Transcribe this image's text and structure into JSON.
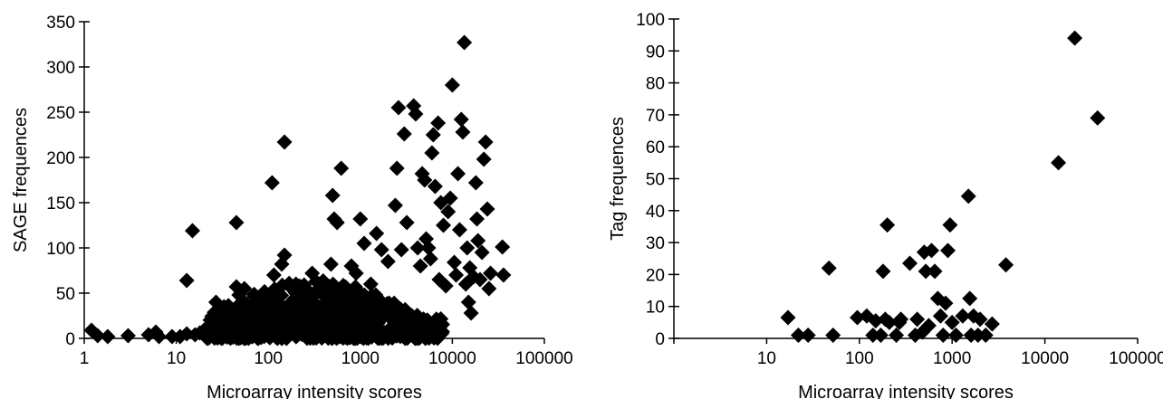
{
  "chart_data": [
    {
      "type": "scatter",
      "xlabel": "Microarray intensity scores",
      "ylabel": "SAGE frequences",
      "x_scale": "log",
      "xlim": [
        1,
        100000
      ],
      "ylim": [
        0,
        350
      ],
      "x_ticks": [
        "1",
        "10",
        "100",
        "1000",
        "10000",
        "100000"
      ],
      "y_ticks": [
        "0",
        "50",
        "100",
        "150",
        "200",
        "250",
        "300",
        "350"
      ],
      "marker": "diamond",
      "color": "#000000",
      "grid": false,
      "points": [
        [
          1.2,
          9
        ],
        [
          1.4,
          3
        ],
        [
          1.8,
          2
        ],
        [
          3,
          3
        ],
        [
          5,
          4
        ],
        [
          6,
          7
        ],
        [
          6.5,
          2
        ],
        [
          9,
          2
        ],
        [
          11,
          2
        ],
        [
          13,
          64
        ],
        [
          15,
          119
        ],
        [
          13,
          5
        ],
        [
          16,
          4
        ],
        [
          18,
          6
        ],
        [
          20,
          9
        ],
        [
          22,
          12
        ],
        [
          25,
          18
        ],
        [
          27,
          40
        ],
        [
          30,
          25
        ],
        [
          33,
          35
        ],
        [
          45,
          128
        ],
        [
          45,
          57
        ],
        [
          48,
          48
        ],
        [
          55,
          55
        ],
        [
          40,
          15
        ],
        [
          60,
          22
        ],
        [
          70,
          18
        ],
        [
          80,
          30
        ],
        [
          90,
          10
        ],
        [
          110,
          172
        ],
        [
          115,
          70
        ],
        [
          150,
          217
        ],
        [
          150,
          92
        ],
        [
          140,
          82
        ],
        [
          125,
          45
        ],
        [
          170,
          38
        ],
        [
          200,
          60
        ],
        [
          250,
          55
        ],
        [
          300,
          72
        ],
        [
          330,
          63
        ],
        [
          380,
          50
        ],
        [
          420,
          45
        ],
        [
          480,
          82
        ],
        [
          500,
          158
        ],
        [
          520,
          132
        ],
        [
          560,
          128
        ],
        [
          620,
          188
        ],
        [
          650,
          52
        ],
        [
          700,
          40
        ],
        [
          800,
          80
        ],
        [
          900,
          72
        ],
        [
          1000,
          132
        ],
        [
          1100,
          105
        ],
        [
          1300,
          60
        ],
        [
          1500,
          116
        ],
        [
          1700,
          98
        ],
        [
          2000,
          85
        ],
        [
          2400,
          147
        ],
        [
          2500,
          188
        ],
        [
          2600,
          255
        ],
        [
          2800,
          98
        ],
        [
          3000,
          226
        ],
        [
          3200,
          128
        ],
        [
          3800,
          257
        ],
        [
          4000,
          248
        ],
        [
          4200,
          100
        ],
        [
          4500,
          80
        ],
        [
          4700,
          182
        ],
        [
          5000,
          175
        ],
        [
          5200,
          110
        ],
        [
          5500,
          100
        ],
        [
          5800,
          88
        ],
        [
          6000,
          205
        ],
        [
          6200,
          225
        ],
        [
          6500,
          168
        ],
        [
          7000,
          238
        ],
        [
          7200,
          65
        ],
        [
          7500,
          150
        ],
        [
          8000,
          125
        ],
        [
          8500,
          58
        ],
        [
          9000,
          140
        ],
        [
          9500,
          155
        ],
        [
          10000,
          280
        ],
        [
          10500,
          84
        ],
        [
          11000,
          70
        ],
        [
          11500,
          182
        ],
        [
          12000,
          120
        ],
        [
          12500,
          242
        ],
        [
          13000,
          228
        ],
        [
          13500,
          327
        ],
        [
          14000,
          60
        ],
        [
          14500,
          100
        ],
        [
          15000,
          40
        ],
        [
          15500,
          78
        ],
        [
          16000,
          28
        ],
        [
          17000,
          68
        ],
        [
          18000,
          172
        ],
        [
          18500,
          132
        ],
        [
          19000,
          108
        ],
        [
          20000,
          65
        ],
        [
          21000,
          95
        ],
        [
          22000,
          198
        ],
        [
          23000,
          217
        ],
        [
          24000,
          143
        ],
        [
          25000,
          55
        ],
        [
          26000,
          72
        ],
        [
          35000,
          101
        ],
        [
          36000,
          70
        ]
      ],
      "dense_cluster": {
        "x_range": [
          20,
          8000
        ],
        "y_range": [
          0,
          65
        ]
      }
    },
    {
      "type": "scatter",
      "xlabel": "Microarray intensity scores",
      "ylabel": "Tag frequences",
      "x_scale": "log",
      "xlim": [
        1,
        100000
      ],
      "ylim": [
        0,
        100
      ],
      "x_ticks": [
        "10",
        "100",
        "1000",
        "10000",
        "100000"
      ],
      "y_ticks": [
        "0",
        "10",
        "20",
        "30",
        "40",
        "50",
        "60",
        "70",
        "80",
        "90",
        "100"
      ],
      "marker": "diamond",
      "color": "#000000",
      "grid": false,
      "points": [
        [
          17,
          6.5
        ],
        [
          22,
          1
        ],
        [
          28,
          1
        ],
        [
          47,
          22
        ],
        [
          52,
          1
        ],
        [
          95,
          6.5
        ],
        [
          120,
          7
        ],
        [
          140,
          1
        ],
        [
          150,
          5.5
        ],
        [
          170,
          1
        ],
        [
          180,
          21
        ],
        [
          190,
          6
        ],
        [
          200,
          35.5
        ],
        [
          210,
          5
        ],
        [
          250,
          1
        ],
        [
          270,
          5
        ],
        [
          280,
          6
        ],
        [
          350,
          23.5
        ],
        [
          400,
          1
        ],
        [
          420,
          6
        ],
        [
          480,
          2
        ],
        [
          500,
          27
        ],
        [
          520,
          21
        ],
        [
          560,
          4
        ],
        [
          600,
          27.5
        ],
        [
          650,
          21
        ],
        [
          700,
          12.5
        ],
        [
          750,
          7
        ],
        [
          800,
          1
        ],
        [
          850,
          11
        ],
        [
          900,
          27.5
        ],
        [
          950,
          35.5
        ],
        [
          1000,
          5
        ],
        [
          1100,
          1
        ],
        [
          1300,
          7
        ],
        [
          1500,
          44.5
        ],
        [
          1550,
          12.5
        ],
        [
          1600,
          1
        ],
        [
          1700,
          7
        ],
        [
          1900,
          1
        ],
        [
          2000,
          6
        ],
        [
          2300,
          1
        ],
        [
          2700,
          4.5
        ],
        [
          3800,
          23
        ],
        [
          14000,
          55
        ],
        [
          21000,
          94
        ],
        [
          37000,
          69
        ]
      ]
    }
  ]
}
